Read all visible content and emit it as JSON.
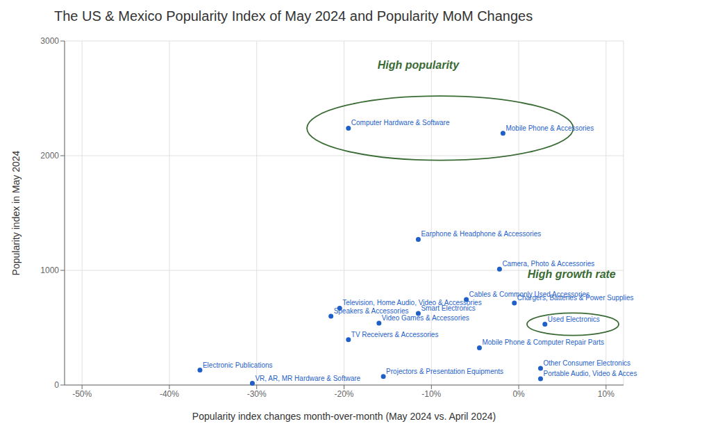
{
  "chart_data": {
    "type": "scatter",
    "title": "The US & Mexico Popularity Index of May 2024 and Popularity MoM Changes",
    "x_label": "Popularity index changes month-over-month (May 2024 vs. April 2024)",
    "y_label": "Popularity index in May 2024",
    "color": "#1f5fc8",
    "grid": true,
    "xlim": [
      -0.52,
      0.12
    ],
    "ylim": [
      0,
      3000
    ],
    "xticks": [
      {
        "value": -0.5,
        "label": "-50%"
      },
      {
        "value": -0.4,
        "label": "-40%"
      },
      {
        "value": -0.3,
        "label": "-30%"
      },
      {
        "value": -0.2,
        "label": "-20%"
      },
      {
        "value": -0.1,
        "label": "-10%"
      },
      {
        "value": 0,
        "label": "0%"
      },
      {
        "value": 0.1,
        "label": "10%"
      }
    ],
    "yticks": [
      0,
      1000,
      2000,
      3000
    ],
    "points": [
      {
        "label": "Computer Hardware & Software",
        "x": -0.195,
        "y": 2240
      },
      {
        "label": "Mobile Phone & Accessories",
        "x": -0.018,
        "y": 2195
      },
      {
        "label": "Earphone & Headphone & Accessories",
        "x": -0.115,
        "y": 1270
      },
      {
        "label": "Camera, Photo & Accessories",
        "x": -0.022,
        "y": 1010
      },
      {
        "label": "Television, Home Audio, Video & Accessories",
        "x": -0.205,
        "y": 670
      },
      {
        "label": "Speakers & Accessories",
        "x": -0.215,
        "y": 600
      },
      {
        "label": "Cables & Commonly Used Accessories",
        "x": -0.06,
        "y": 745
      },
      {
        "label": "Chargers, Batteries & Power Supplies",
        "x": -0.005,
        "y": 715
      },
      {
        "label": "Smart Electronics",
        "x": -0.115,
        "y": 625
      },
      {
        "label": "Video Games & Accessories",
        "x": -0.16,
        "y": 540
      },
      {
        "label": "TV Receivers & Accessories",
        "x": -0.195,
        "y": 395
      },
      {
        "label": "Used Electronics",
        "x": 0.03,
        "y": 530
      },
      {
        "label": "Mobile Phone & Computer Repair Parts",
        "x": -0.045,
        "y": 325
      },
      {
        "label": "Projectors & Presentation Equipments",
        "x": -0.155,
        "y": 75
      },
      {
        "label": "Electronic Publications",
        "x": -0.365,
        "y": 130
      },
      {
        "label": "VR, AR, MR Hardware & Software",
        "x": -0.305,
        "y": 15
      },
      {
        "label": "Other Consumer Electronics",
        "x": 0.025,
        "y": 145
      },
      {
        "label": "Portable Audio, Video & Acces",
        "x": 0.025,
        "y": 55
      }
    ],
    "annotations": [
      {
        "text": "High popularity",
        "x": -0.115,
        "y": 2760,
        "color": "#3a6b35",
        "ellipse": {
          "cx": -0.09,
          "cy": 2240,
          "width": 0.305,
          "height": 560
        }
      },
      {
        "text": "High growth rate",
        "x": 0.01,
        "y": 935,
        "color": "#3a6b35",
        "ellipse": {
          "cx": 0.062,
          "cy": 530,
          "width": 0.105,
          "height": 195
        }
      }
    ]
  }
}
